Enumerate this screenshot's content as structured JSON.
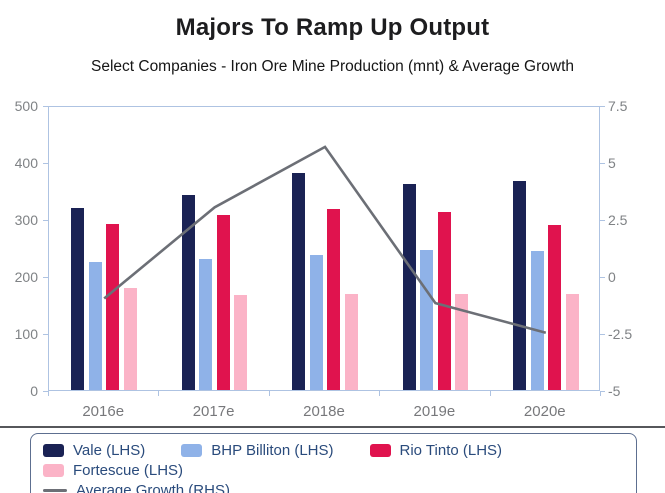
{
  "header": {
    "title": "Majors To Ramp Up Output",
    "subtitle": "Select Companies - Iron Ore Mine Production (mnt) & Average Growth"
  },
  "chart_data": {
    "type": "combo",
    "subtype": "grouped-bar-with-line",
    "categories": [
      "2016e",
      "2017e",
      "2018e",
      "2019e",
      "2020e"
    ],
    "bar_series": [
      {
        "name": "Vale (LHS)",
        "color": "#1a2254",
        "axis": "left",
        "values": [
          320,
          343,
          380,
          362,
          367
        ]
      },
      {
        "name": "BHP Billiton (LHS)",
        "color": "#8fb2e8",
        "axis": "left",
        "values": [
          224,
          230,
          236,
          246,
          244
        ]
      },
      {
        "name": "Rio Tinto (LHS)",
        "color": "#e0134e",
        "axis": "left",
        "values": [
          292,
          307,
          318,
          313,
          290
        ]
      },
      {
        "name": "Fortescue (LHS)",
        "color": "#fbb3c7",
        "axis": "left",
        "values": [
          179,
          167,
          168,
          168,
          168
        ]
      }
    ],
    "line_series": [
      {
        "name": "Average Growth (RHS)",
        "color": "#6c6f76",
        "axis": "right",
        "values": [
          -0.9,
          3.1,
          5.75,
          -1.1,
          -2.4
        ]
      }
    ],
    "left_axis": {
      "min": 0,
      "max": 500,
      "step": 100,
      "tick_labels": [
        "0",
        "100",
        "200",
        "300",
        "400",
        "500"
      ]
    },
    "right_axis": {
      "min": -5,
      "max": 7.5,
      "step": 2.5,
      "tick_labels": [
        "-5",
        "-2.5",
        "0",
        "2.5",
        "5",
        "7.5"
      ]
    },
    "grid": "off",
    "legend_position": "bottom",
    "title": "Majors To Ramp Up Output",
    "subtitle": "Select Companies - Iron Ore Mine Production (mnt) & Average Growth"
  },
  "colors": {
    "axis_frame": "#aec3e2",
    "axis_label": "#7f8285",
    "separator": "#56575b",
    "legend_border": "#5d6f90",
    "legend_text": "#2a4b7c"
  }
}
